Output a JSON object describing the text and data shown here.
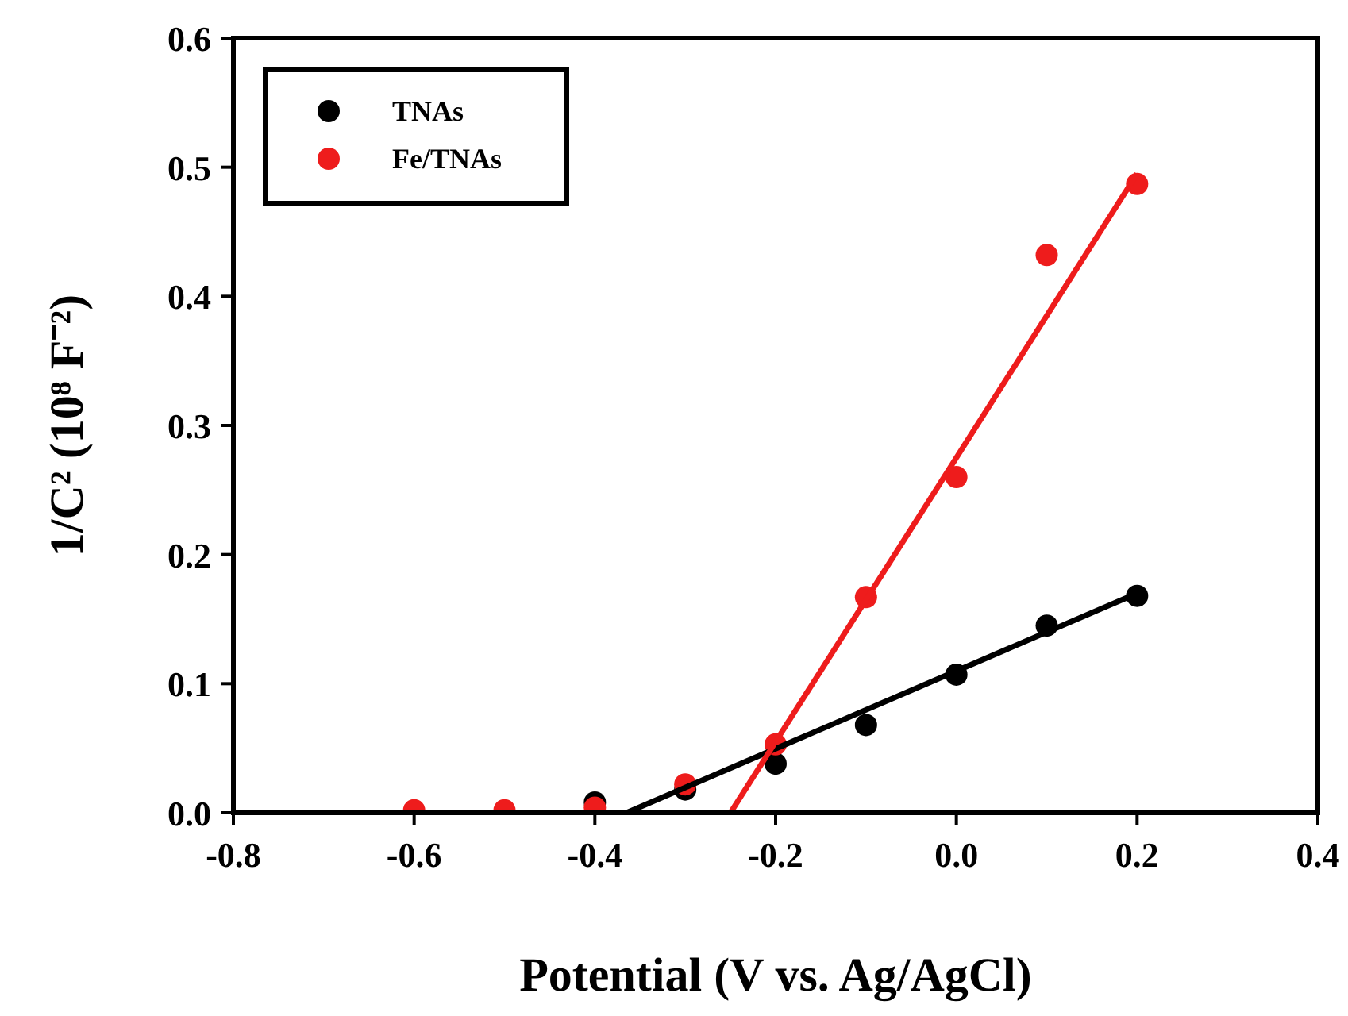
{
  "chart_data": {
    "type": "scatter",
    "xlabel": "Potential (V vs. Ag/AgCl)",
    "ylabel": "1/C² (10⁸ F⁻²)",
    "xlim": [
      -0.8,
      0.4
    ],
    "xticks": [
      -0.8,
      -0.6,
      -0.4,
      -0.2,
      {
        "value": 0,
        "label": "0.0"
      },
      0.2,
      0.4
    ],
    "ylim": [
      0,
      0.6
    ],
    "yticks": [
      {
        "value": 0,
        "label": "0.0"
      },
      0.1,
      0.2,
      0.3,
      0.4,
      0.5,
      0.6
    ],
    "grid": false,
    "legend": "top left",
    "series": [
      {
        "name": "TNAs",
        "marker": "circle",
        "color": "#000000",
        "x": [
          -0.4,
          -0.3,
          -0.2,
          -0.1,
          0,
          0.1,
          0.2
        ],
        "values": [
          0.008,
          0.018,
          0.038,
          0.068,
          0.107,
          0.145,
          0.168
        ]
      },
      {
        "name": "Fe/TNAs",
        "marker": "circle",
        "color": "#ee1c1c",
        "x": [
          -0.6,
          -0.5,
          -0.4,
          -0.3,
          -0.2,
          -0.1,
          0,
          0.1,
          0.2
        ],
        "values": [
          0.002,
          0.002,
          0.004,
          0.022,
          0.053,
          0.167,
          0.26,
          0.432,
          0.487
        ]
      },
      {
        "type": "line",
        "marker": "none",
        "color": "#000000",
        "x": [
          -0.365,
          0.2
        ],
        "values": [
          0,
          0.17
        ]
      },
      {
        "type": "line",
        "marker": "none",
        "color": "#ee1c1c",
        "x": [
          -0.25,
          0.2
        ],
        "values": [
          0,
          0.495
        ]
      }
    ]
  }
}
